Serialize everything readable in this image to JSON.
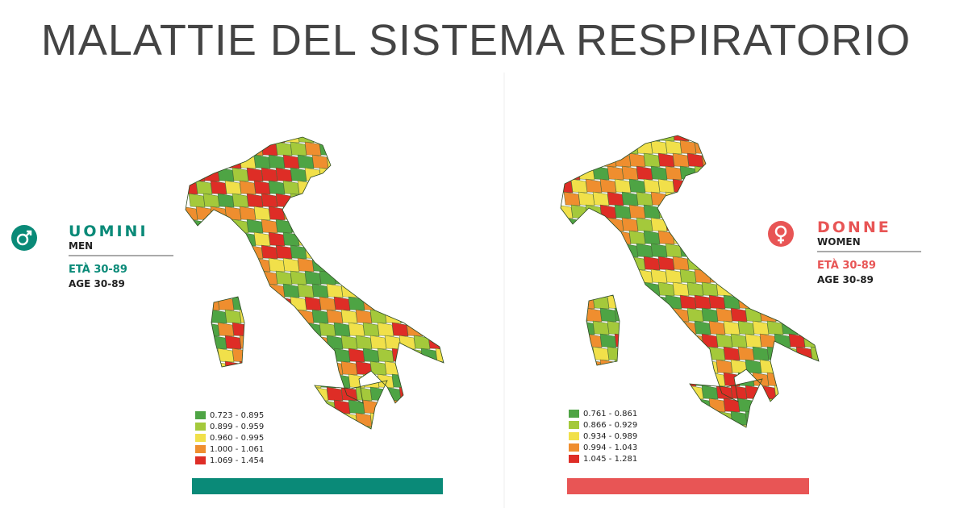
{
  "title": "MALATTIE DEL SISTEMA RESPIRATORIO",
  "panels": [
    {
      "label": "UOMINI",
      "sublabel": "MEN",
      "age_label": "ETÀ 30-89",
      "age_sublabel": "AGE 30-89",
      "legend": [
        "0.723 - 0.895",
        "0.899 - 0.959",
        "0.960 - 0.995",
        "1.000 - 1.061",
        "1.069 - 1.454"
      ]
    },
    {
      "label": "DONNE",
      "sublabel": "WOMEN",
      "age_label": "ETÀ 30-89",
      "age_sublabel": "AGE 30-89",
      "legend": [
        "0.761 - 0.861",
        "0.866 - 0.929",
        "0.934 - 0.989",
        "0.994 - 1.043",
        "1.045 - 1.281"
      ]
    }
  ]
}
